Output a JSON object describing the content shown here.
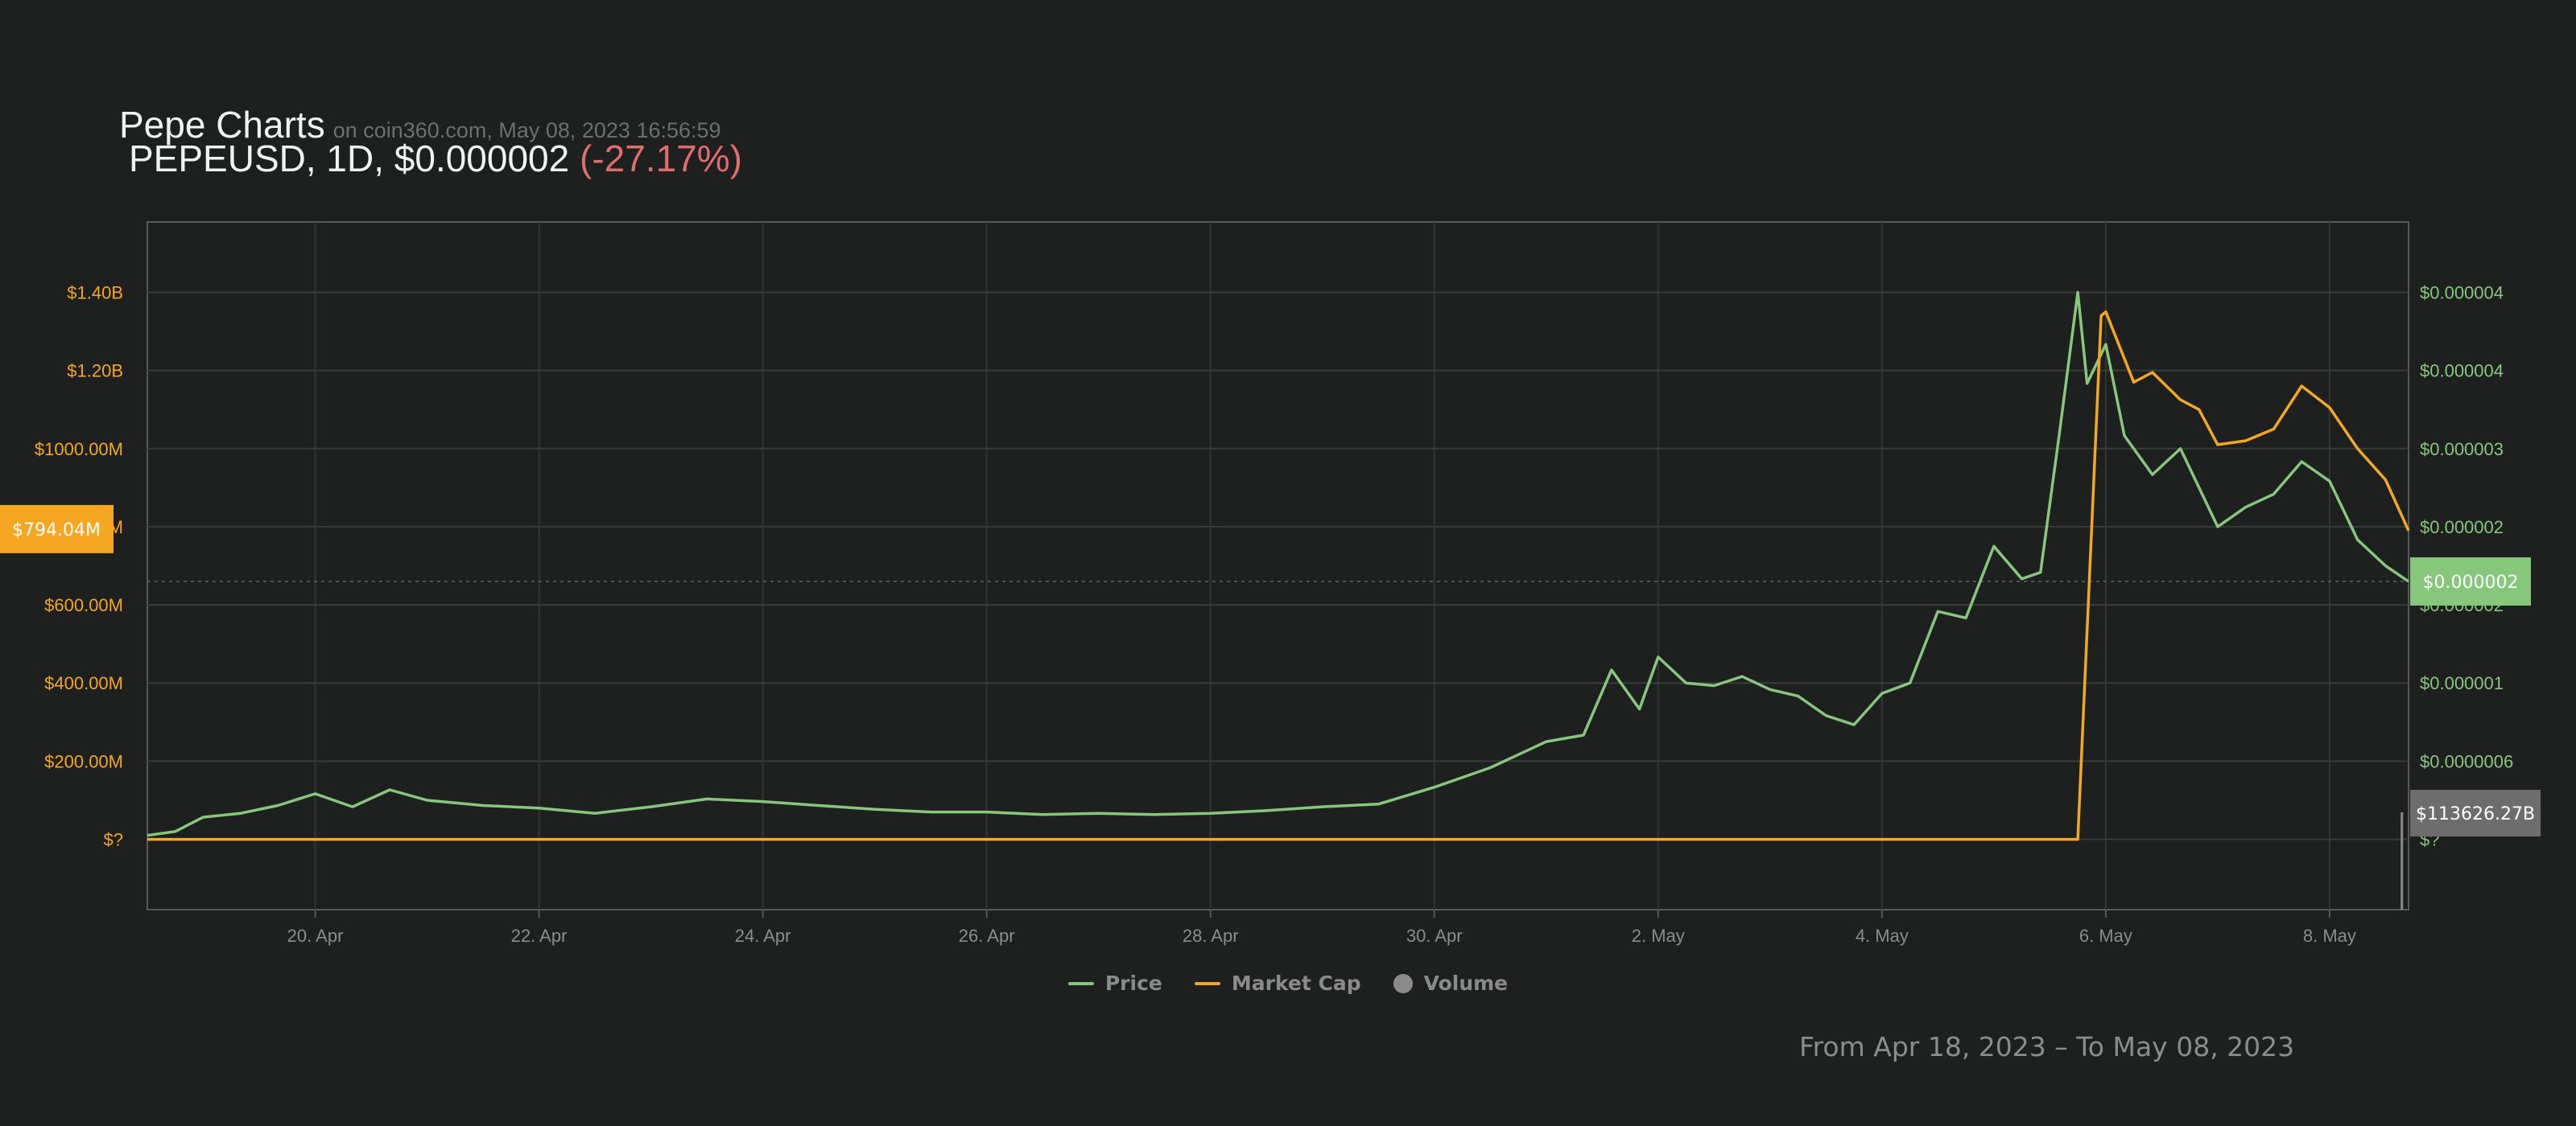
{
  "header": {
    "title": "Pepe Charts",
    "source": "on coin360.com, May 08, 2023 16:56:59",
    "pair": "PEPEUSD, 1D, $0.000002",
    "change": "(-27.17%)"
  },
  "legend": [
    {
      "name": "Price",
      "color": "#86c77c",
      "kind": "line"
    },
    {
      "name": "Market Cap",
      "color": "#f5a623",
      "kind": "line"
    },
    {
      "name": "Volume",
      "color": "#8a8a8a",
      "kind": "dot"
    }
  ],
  "range_text": "From Apr 18, 2023 – To May 08, 2023",
  "chart_data": {
    "type": "line",
    "x_range": [
      "2023-04-18T12:00",
      "2023-05-08T16:56"
    ],
    "x_ticks": [
      {
        "label": "20. Apr",
        "date": "2023-04-20"
      },
      {
        "label": "22. Apr",
        "date": "2023-04-22"
      },
      {
        "label": "24. Apr",
        "date": "2023-04-24"
      },
      {
        "label": "26. Apr",
        "date": "2023-04-26"
      },
      {
        "label": "28. Apr",
        "date": "2023-04-28"
      },
      {
        "label": "30. Apr",
        "date": "2023-04-30"
      },
      {
        "label": "2. May",
        "date": "2023-05-02"
      },
      {
        "label": "4. May",
        "date": "2023-05-04"
      },
      {
        "label": "6. May",
        "date": "2023-05-06"
      },
      {
        "label": "8. May",
        "date": "2023-05-08"
      }
    ],
    "y_left": {
      "color": "#f5a623",
      "range": [
        -180,
        1580
      ],
      "ticks": [
        {
          "value": 0,
          "label": "$?"
        },
        {
          "value": 200,
          "label": "$200.00M"
        },
        {
          "value": 400,
          "label": "$400.00M"
        },
        {
          "value": 600,
          "label": "$600.00M"
        },
        {
          "value": 800,
          "label": "$800.00M"
        },
        {
          "value": 1000,
          "label": "$1000.00M"
        },
        {
          "value": 1200,
          "label": "$1.20B"
        },
        {
          "value": 1400,
          "label": "$1.40B"
        }
      ],
      "marker": {
        "value": 794,
        "label": "$794.04M"
      }
    },
    "y_right": {
      "color": "#86c77c",
      "range": [
        -5.4e-07,
        4.74e-06
      ],
      "ticks": [
        {
          "value": 0,
          "label": "$?"
        },
        {
          "value": 6e-07,
          "label": "$0.0000006"
        },
        {
          "value": 1.2e-06,
          "label": "$0.000001"
        },
        {
          "value": 1.8e-06,
          "label": "$0.000002"
        },
        {
          "value": 2.4e-06,
          "label": "$0.000002"
        },
        {
          "value": 3e-06,
          "label": "$0.000003"
        },
        {
          "value": 3.6e-06,
          "label": "$0.000004"
        },
        {
          "value": 4.2e-06,
          "label": "$0.000004"
        }
      ],
      "marker": {
        "value": 1.98e-06,
        "label": "$0.000002"
      }
    },
    "volume_marker": {
      "label": "$113626.27B",
      "date": "2023-05-08T15:30"
    },
    "series": [
      {
        "name": "Price",
        "axis": "right",
        "color": "#86c77c",
        "points": [
          [
            "2023-04-18T12:00",
            3e-08
          ],
          [
            "2023-04-18T18:00",
            6e-08
          ],
          [
            "2023-04-19T00:00",
            1.7e-07
          ],
          [
            "2023-04-19T08:00",
            2e-07
          ],
          [
            "2023-04-19T16:00",
            2.6e-07
          ],
          [
            "2023-04-20T00:00",
            3.5e-07
          ],
          [
            "2023-04-20T08:00",
            2.5e-07
          ],
          [
            "2023-04-20T16:00",
            3.8e-07
          ],
          [
            "2023-04-21T00:00",
            3e-07
          ],
          [
            "2023-04-21T12:00",
            2.6e-07
          ],
          [
            "2023-04-22T00:00",
            2.4e-07
          ],
          [
            "2023-04-22T12:00",
            2e-07
          ],
          [
            "2023-04-23T00:00",
            2.5e-07
          ],
          [
            "2023-04-23T12:00",
            3.1e-07
          ],
          [
            "2023-04-24T00:00",
            2.9e-07
          ],
          [
            "2023-04-24T12:00",
            2.6e-07
          ],
          [
            "2023-04-25T00:00",
            2.3e-07
          ],
          [
            "2023-04-25T12:00",
            2.1e-07
          ],
          [
            "2023-04-26T00:00",
            2.1e-07
          ],
          [
            "2023-04-26T12:00",
            1.9e-07
          ],
          [
            "2023-04-27T00:00",
            2e-07
          ],
          [
            "2023-04-27T12:00",
            1.9e-07
          ],
          [
            "2023-04-28T00:00",
            2e-07
          ],
          [
            "2023-04-28T12:00",
            2.2e-07
          ],
          [
            "2023-04-29T00:00",
            2.5e-07
          ],
          [
            "2023-04-29T12:00",
            2.7e-07
          ],
          [
            "2023-04-30T00:00",
            4e-07
          ],
          [
            "2023-04-30T12:00",
            5.5e-07
          ],
          [
            "2023-05-01T00:00",
            7.5e-07
          ],
          [
            "2023-05-01T08:00",
            8e-07
          ],
          [
            "2023-05-01T14:00",
            1.3e-06
          ],
          [
            "2023-05-01T20:00",
            1e-06
          ],
          [
            "2023-05-02T00:00",
            1.4e-06
          ],
          [
            "2023-05-02T06:00",
            1.2e-06
          ],
          [
            "2023-05-02T12:00",
            1.18e-06
          ],
          [
            "2023-05-02T18:00",
            1.25e-06
          ],
          [
            "2023-05-03T00:00",
            1.15e-06
          ],
          [
            "2023-05-03T06:00",
            1.1e-06
          ],
          [
            "2023-05-03T12:00",
            9.5e-07
          ],
          [
            "2023-05-03T18:00",
            8.8e-07
          ],
          [
            "2023-05-04T00:00",
            1.12e-06
          ],
          [
            "2023-05-04T06:00",
            1.2e-06
          ],
          [
            "2023-05-04T12:00",
            1.75e-06
          ],
          [
            "2023-05-04T18:00",
            1.7e-06
          ],
          [
            "2023-05-05T00:00",
            2.25e-06
          ],
          [
            "2023-05-05T06:00",
            2e-06
          ],
          [
            "2023-05-05T10:00",
            2.05e-06
          ],
          [
            "2023-05-05T14:00",
            3.1e-06
          ],
          [
            "2023-05-05T18:00",
            4.2e-06
          ],
          [
            "2023-05-05T20:00",
            3.5e-06
          ],
          [
            "2023-05-06T00:00",
            3.8e-06
          ],
          [
            "2023-05-06T04:00",
            3.1e-06
          ],
          [
            "2023-05-06T10:00",
            2.8e-06
          ],
          [
            "2023-05-06T16:00",
            3e-06
          ],
          [
            "2023-05-07T00:00",
            2.4e-06
          ],
          [
            "2023-05-07T06:00",
            2.55e-06
          ],
          [
            "2023-05-07T12:00",
            2.65e-06
          ],
          [
            "2023-05-07T18:00",
            2.9e-06
          ],
          [
            "2023-05-08T00:00",
            2.75e-06
          ],
          [
            "2023-05-08T06:00",
            2.3e-06
          ],
          [
            "2023-05-08T12:00",
            2.1e-06
          ],
          [
            "2023-05-08T16:56",
            1.98e-06
          ]
        ]
      },
      {
        "name": "Market Cap",
        "axis": "left",
        "color": "#f5a623",
        "points": [
          [
            "2023-04-18T12:00",
            0
          ],
          [
            "2023-05-05T18:00",
            0
          ],
          [
            "2023-05-05T23:00",
            1340
          ],
          [
            "2023-05-06T00:00",
            1350
          ],
          [
            "2023-05-06T06:00",
            1170
          ],
          [
            "2023-05-06T10:00",
            1195
          ],
          [
            "2023-05-06T16:00",
            1125
          ],
          [
            "2023-05-06T20:00",
            1100
          ],
          [
            "2023-05-07T00:00",
            1010
          ],
          [
            "2023-05-07T06:00",
            1020
          ],
          [
            "2023-05-07T12:00",
            1050
          ],
          [
            "2023-05-07T18:00",
            1160
          ],
          [
            "2023-05-08T00:00",
            1105
          ],
          [
            "2023-05-08T06:00",
            1000
          ],
          [
            "2023-05-08T12:00",
            920
          ],
          [
            "2023-05-08T16:56",
            790
          ]
        ]
      }
    ]
  }
}
